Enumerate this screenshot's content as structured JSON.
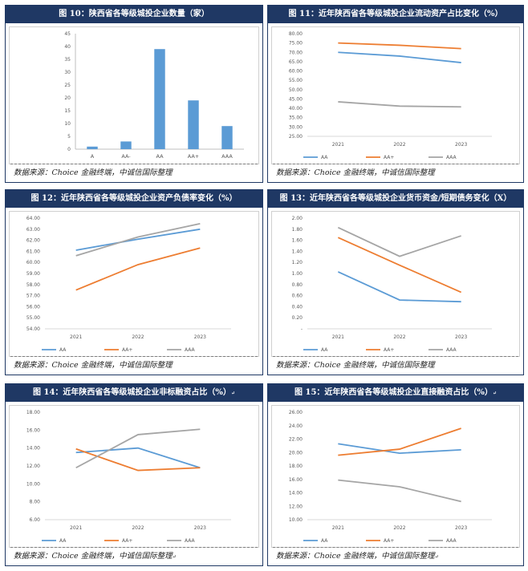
{
  "source_text": "数据来源：Choice 金融终端，中诚信国际整理",
  "chart_data": [
    {
      "type": "bar",
      "title": "图 10：陕西省各等级城投企业数量（家）",
      "categories": [
        "A",
        "AA-",
        "AA",
        "AA+",
        "AAA"
      ],
      "values": [
        1,
        3,
        39,
        19,
        9
      ],
      "ylim": [
        0,
        45
      ],
      "yticks": [
        0,
        5,
        10,
        15,
        20,
        25,
        30,
        35,
        40,
        45
      ],
      "grid": false,
      "colors": [
        "#5b9bd5"
      ],
      "source": "数据来源：Choice 金融终端，中诚信国际整理",
      "source_mark": ""
    },
    {
      "type": "line",
      "title": "图 11：近年陕西省各等级城投企业流动资产占比变化（%）",
      "x": [
        "2021",
        "2022",
        "2023"
      ],
      "series": [
        {
          "name": "AA",
          "color": "#5b9bd5",
          "values": [
            70.0,
            68.0,
            64.5
          ]
        },
        {
          "name": "AA+",
          "color": "#ed7d31",
          "values": [
            75.0,
            73.8,
            72.0
          ]
        },
        {
          "name": "AAA",
          "color": "#a5a5a5",
          "values": [
            43.5,
            41.2,
            40.8
          ]
        }
      ],
      "ylim": [
        25,
        80
      ],
      "yticks": [
        "25.00",
        "30.00",
        "35.00",
        "40.00",
        "45.00",
        "50.00",
        "55.00",
        "60.00",
        "65.00",
        "70.00",
        "75.00",
        "80.00"
      ],
      "legend": "bottom",
      "source": "数据来源：Choice 金融终端，中诚信国际整理",
      "source_mark": ""
    },
    {
      "type": "line",
      "title": "图 12：近年陕西省各等级城投企业资产负债率变化（%）",
      "x": [
        "2021",
        "2022",
        "2023"
      ],
      "series": [
        {
          "name": "AA",
          "color": "#5b9bd5",
          "values": [
            61.1,
            62.1,
            63.0
          ]
        },
        {
          "name": "AA+",
          "color": "#ed7d31",
          "values": [
            57.5,
            59.8,
            61.3
          ]
        },
        {
          "name": "AAA",
          "color": "#a5a5a5",
          "values": [
            60.6,
            62.3,
            63.5
          ]
        }
      ],
      "ylim": [
        54,
        64
      ],
      "yticks": [
        "54.00",
        "55.00",
        "56.00",
        "57.00",
        "58.00",
        "59.00",
        "60.00",
        "61.00",
        "62.00",
        "63.00",
        "64.00"
      ],
      "legend": "bottom",
      "source": "数据来源：Choice 金融终端，中诚信国际整理",
      "source_mark": ""
    },
    {
      "type": "line",
      "title": "图 13：近年陕西省各等级城投企业货币资金/短期债务变化（X）",
      "x": [
        "2021",
        "2022",
        "2023"
      ],
      "series": [
        {
          "name": "AA",
          "color": "#5b9bd5",
          "values": [
            1.03,
            0.52,
            0.49
          ]
        },
        {
          "name": "AA+",
          "color": "#ed7d31",
          "values": [
            1.65,
            1.15,
            0.66
          ]
        },
        {
          "name": "AAA",
          "color": "#a5a5a5",
          "values": [
            1.83,
            1.31,
            1.68
          ]
        }
      ],
      "ylim": [
        0,
        2
      ],
      "yticks": [
        "-",
        "0.20",
        "0.40",
        "0.60",
        "0.80",
        "1.00",
        "1.20",
        "1.40",
        "1.60",
        "1.80",
        "2.00"
      ],
      "legend": "bottom",
      "source": "数据来源：Choice 金融终端，中诚信国际整理",
      "source_mark": ""
    },
    {
      "type": "line",
      "title": "图 14：近年陕西省各等级城投企业非标融资占比（%）",
      "x": [
        "2021",
        "2022",
        "2023"
      ],
      "series": [
        {
          "name": "AA",
          "color": "#5b9bd5",
          "values": [
            13.5,
            14.0,
            11.8
          ]
        },
        {
          "name": "AA+",
          "color": "#ed7d31",
          "values": [
            13.9,
            11.5,
            11.8
          ]
        },
        {
          "name": "AAA",
          "color": "#a5a5a5",
          "values": [
            11.8,
            15.5,
            16.1
          ]
        }
      ],
      "ylim": [
        6,
        18
      ],
      "yticks": [
        "6.00",
        "8.00",
        "10.00",
        "12.00",
        "14.00",
        "16.00",
        "18.00"
      ],
      "legend": "bottom",
      "title_mark": "↵",
      "source": "数据来源：Choice 金融终端，中诚信国际整理",
      "source_mark": "↵"
    },
    {
      "type": "line",
      "title": "图 15：近年陕西省各等级城投企业直接融资占比（%）",
      "x": [
        "2021",
        "2022",
        "2023"
      ],
      "series": [
        {
          "name": "AA",
          "color": "#5b9bd5",
          "values": [
            21.3,
            19.9,
            20.4
          ]
        },
        {
          "name": "AA+",
          "color": "#ed7d31",
          "values": [
            19.6,
            20.5,
            23.6
          ]
        },
        {
          "name": "AAA",
          "color": "#a5a5a5",
          "values": [
            15.9,
            14.9,
            12.7
          ]
        }
      ],
      "ylim": [
        10,
        26
      ],
      "yticks": [
        "10.00",
        "12.00",
        "14.00",
        "16.00",
        "18.00",
        "20.00",
        "22.00",
        "24.00",
        "26.00"
      ],
      "legend": "bottom",
      "title_mark": "↵",
      "source": "数据来源：Choice 金融终端，中诚信国际整理",
      "source_mark": "↵"
    }
  ]
}
